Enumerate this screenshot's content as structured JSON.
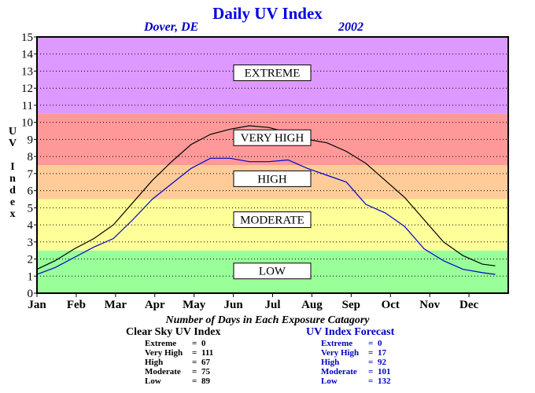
{
  "header": {
    "title": "Daily UV Index",
    "location": "Dover, DE",
    "year": "2002"
  },
  "chart_data": {
    "type": "line",
    "ylabel": "UV Index",
    "ylim": [
      0,
      15
    ],
    "yticks": [
      "0",
      "1",
      "2",
      "3",
      "4",
      "5",
      "6",
      "7",
      "8",
      "9",
      "10",
      "11",
      "12",
      "13",
      "14",
      "15"
    ],
    "xticks": [
      "Jan",
      "Feb",
      "Mar",
      "Apr",
      "May",
      "Jun",
      "Jul",
      "Aug",
      "Sep",
      "Oct",
      "Nov",
      "Dec"
    ],
    "grid": true,
    "bands": [
      {
        "name": "LOW",
        "from": 0,
        "to": 2.5,
        "color": "#99ff99"
      },
      {
        "name": "MODERATE",
        "from": 2.5,
        "to": 5.5,
        "color": "#ffff99"
      },
      {
        "name": "HIGH",
        "from": 5.5,
        "to": 7.5,
        "color": "#ffcc99"
      },
      {
        "name": "VERY HIGH",
        "from": 7.5,
        "to": 10.5,
        "color": "#ff9999"
      },
      {
        "name": "EXTREME",
        "from": 10.5,
        "to": 15,
        "color": "#dd99ff"
      }
    ],
    "band_labels": [
      {
        "text": "EXTREME",
        "y": 12.9
      },
      {
        "text": "VERY HIGH",
        "y": 9.1
      },
      {
        "text": "HIGH",
        "y": 6.7
      },
      {
        "text": "MODERATE",
        "y": 4.3
      },
      {
        "text": "LOW",
        "y": 1.3
      }
    ],
    "series": [
      {
        "name": "Clear Sky UV Index",
        "color": "#000000",
        "x": [
          1,
          15,
          30,
          45,
          60,
          75,
          90,
          105,
          120,
          135,
          150,
          165,
          180,
          195,
          210,
          225,
          240,
          255,
          270,
          285,
          300,
          315,
          330,
          345,
          355
        ],
        "y": [
          1.4,
          1.9,
          2.6,
          3.2,
          4.0,
          5.3,
          6.6,
          7.7,
          8.7,
          9.3,
          9.6,
          9.8,
          9.7,
          9.4,
          9.0,
          8.8,
          8.3,
          7.6,
          6.6,
          5.6,
          4.3,
          3.0,
          2.2,
          1.7,
          1.6
        ]
      },
      {
        "name": "UV Index Forecast",
        "color": "#0000cc",
        "x": [
          1,
          15,
          30,
          45,
          60,
          75,
          90,
          105,
          120,
          135,
          150,
          165,
          180,
          195,
          210,
          225,
          240,
          255,
          270,
          285,
          300,
          315,
          330,
          345,
          355
        ],
        "y": [
          1.1,
          1.5,
          2.1,
          2.7,
          3.2,
          4.3,
          5.5,
          6.4,
          7.3,
          7.9,
          7.9,
          7.7,
          7.7,
          7.8,
          7.3,
          6.9,
          6.5,
          5.2,
          4.7,
          3.9,
          2.6,
          1.9,
          1.4,
          1.2,
          1.1
        ]
      }
    ]
  },
  "summary": {
    "title": "Number of Days in Each Exposure Catagory",
    "clear_sky": {
      "heading": "Clear Sky UV Index",
      "rows": [
        {
          "label": "Extreme",
          "value": "0"
        },
        {
          "label": "Very High",
          "value": "111"
        },
        {
          "label": "High",
          "value": "67"
        },
        {
          "label": "Moderate",
          "value": "75"
        },
        {
          "label": "Low",
          "value": "89"
        }
      ]
    },
    "forecast": {
      "heading": "UV Index Forecast",
      "rows": [
        {
          "label": "Extreme",
          "value": "0"
        },
        {
          "label": "Very High",
          "value": "17"
        },
        {
          "label": "High",
          "value": "92"
        },
        {
          "label": "Moderate",
          "value": "101"
        },
        {
          "label": "Low",
          "value": "132"
        }
      ]
    }
  }
}
